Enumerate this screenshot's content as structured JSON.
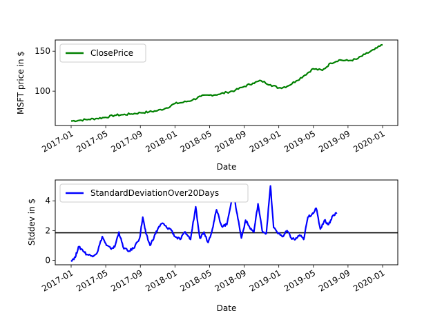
{
  "chart_data": [
    {
      "type": "line",
      "title": "",
      "xlabel": "Date",
      "ylabel": "MSFT price in $",
      "xlim": [
        2016.92,
        3.0
      ],
      "x_ticks": [
        "2017-01",
        "2017-05",
        "2017-09",
        "2018-01",
        "2018-05",
        "2018-09",
        "2019-01",
        "2019-05",
        "2019-09",
        "2020-01"
      ],
      "y_ticks": [
        100,
        150
      ],
      "y_ticks_text": [
        "100",
        "150"
      ],
      "ylim": [
        57,
        164
      ],
      "legend": "upper-left",
      "series": [
        {
          "name": "ClosePrice",
          "color": "#008000",
          "points": [
            [
              0.0,
              62.6
            ],
            [
              0.08,
              63.5
            ],
            [
              0.17,
              64.7
            ],
            [
              0.25,
              65.8
            ],
            [
              0.33,
              67.2
            ],
            [
              0.42,
              69.8
            ],
            [
              0.5,
              70.5
            ],
            [
              0.58,
              71.5
            ],
            [
              0.67,
              73.0
            ],
            [
              0.75,
              74.0
            ],
            [
              0.83,
              75.5
            ],
            [
              0.92,
              79.0
            ],
            [
              1.0,
              84.5
            ],
            [
              1.08,
              86.0
            ],
            [
              1.17,
              89.0
            ],
            [
              1.25,
              93.5
            ],
            [
              1.33,
              95.0
            ],
            [
              1.42,
              96.0
            ],
            [
              1.5,
              98.5
            ],
            [
              1.58,
              101.0
            ],
            [
              1.67,
              106.0
            ],
            [
              1.75,
              110.0
            ],
            [
              1.83,
              113.0
            ],
            [
              1.92,
              108.0
            ],
            [
              2.0,
              104.0
            ],
            [
              2.08,
              106.0
            ],
            [
              2.17,
              113.0
            ],
            [
              2.25,
              120.0
            ],
            [
              2.33,
              128.0
            ],
            [
              2.42,
              126.0
            ],
            [
              2.5,
              135.0
            ],
            [
              2.58,
              139.0
            ],
            [
              2.67,
              138.0
            ],
            [
              2.75,
              140.0
            ],
            [
              2.83,
              146.0
            ],
            [
              2.92,
              152.0
            ],
            [
              3.0,
              158.0
            ]
          ]
        }
      ]
    },
    {
      "type": "line",
      "title": "",
      "xlabel": "Date",
      "ylabel": "Stddev in $",
      "xlim": [
        2016.92,
        3.0
      ],
      "x_ticks": [
        "2017-01",
        "2017-05",
        "2017-09",
        "2018-01",
        "2018-05",
        "2018-09",
        "2019-01",
        "2019-05",
        "2019-09",
        "2020-01"
      ],
      "y_ticks": [
        0,
        2,
        4
      ],
      "y_ticks_text": [
        "0",
        "2",
        "4"
      ],
      "ylim": [
        -0.3,
        5.4
      ],
      "legend": "upper-left",
      "hline": {
        "value": 1.85,
        "color": "#000000"
      },
      "series": [
        {
          "name": "StandardDeviationOver20Days",
          "color": "#0000ff",
          "points": [
            [
              0.0,
              0.0
            ],
            [
              0.04,
              0.2
            ],
            [
              0.07,
              0.9
            ],
            [
              0.11,
              0.7
            ],
            [
              0.15,
              0.4
            ],
            [
              0.2,
              0.3
            ],
            [
              0.25,
              0.5
            ],
            [
              0.3,
              1.6
            ],
            [
              0.34,
              1.0
            ],
            [
              0.38,
              0.8
            ],
            [
              0.42,
              0.9
            ],
            [
              0.46,
              1.9
            ],
            [
              0.5,
              0.9
            ],
            [
              0.55,
              0.6
            ],
            [
              0.6,
              0.8
            ],
            [
              0.66,
              1.5
            ],
            [
              0.69,
              2.9
            ],
            [
              0.72,
              1.8
            ],
            [
              0.76,
              1.0
            ],
            [
              0.8,
              1.6
            ],
            [
              0.84,
              2.2
            ],
            [
              0.88,
              2.5
            ],
            [
              0.92,
              2.2
            ],
            [
              0.96,
              2.1
            ],
            [
              1.0,
              1.6
            ],
            [
              1.05,
              1.4
            ],
            [
              1.1,
              1.9
            ],
            [
              1.15,
              1.4
            ],
            [
              1.2,
              3.6
            ],
            [
              1.24,
              1.5
            ],
            [
              1.28,
              1.9
            ],
            [
              1.32,
              1.2
            ],
            [
              1.36,
              2.1
            ],
            [
              1.4,
              3.4
            ],
            [
              1.45,
              2.3
            ],
            [
              1.5,
              2.4
            ],
            [
              1.56,
              4.6
            ],
            [
              1.6,
              3.1
            ],
            [
              1.64,
              1.5
            ],
            [
              1.68,
              2.7
            ],
            [
              1.72,
              2.2
            ],
            [
              1.76,
              1.9
            ],
            [
              1.8,
              3.8
            ],
            [
              1.84,
              2.0
            ],
            [
              1.88,
              1.8
            ],
            [
              1.92,
              5.0
            ],
            [
              1.95,
              2.2
            ],
            [
              2.0,
              1.8
            ],
            [
              2.04,
              1.6
            ],
            [
              2.08,
              2.0
            ],
            [
              2.12,
              1.5
            ],
            [
              2.16,
              1.4
            ],
            [
              2.2,
              1.7
            ],
            [
              2.24,
              1.4
            ],
            [
              2.28,
              2.9
            ],
            [
              2.32,
              3.1
            ],
            [
              2.36,
              3.5
            ],
            [
              2.4,
              2.1
            ],
            [
              2.44,
              2.7
            ],
            [
              2.48,
              2.4
            ],
            [
              2.52,
              3.0
            ],
            [
              2.56,
              3.2
            ]
          ]
        }
      ]
    }
  ]
}
